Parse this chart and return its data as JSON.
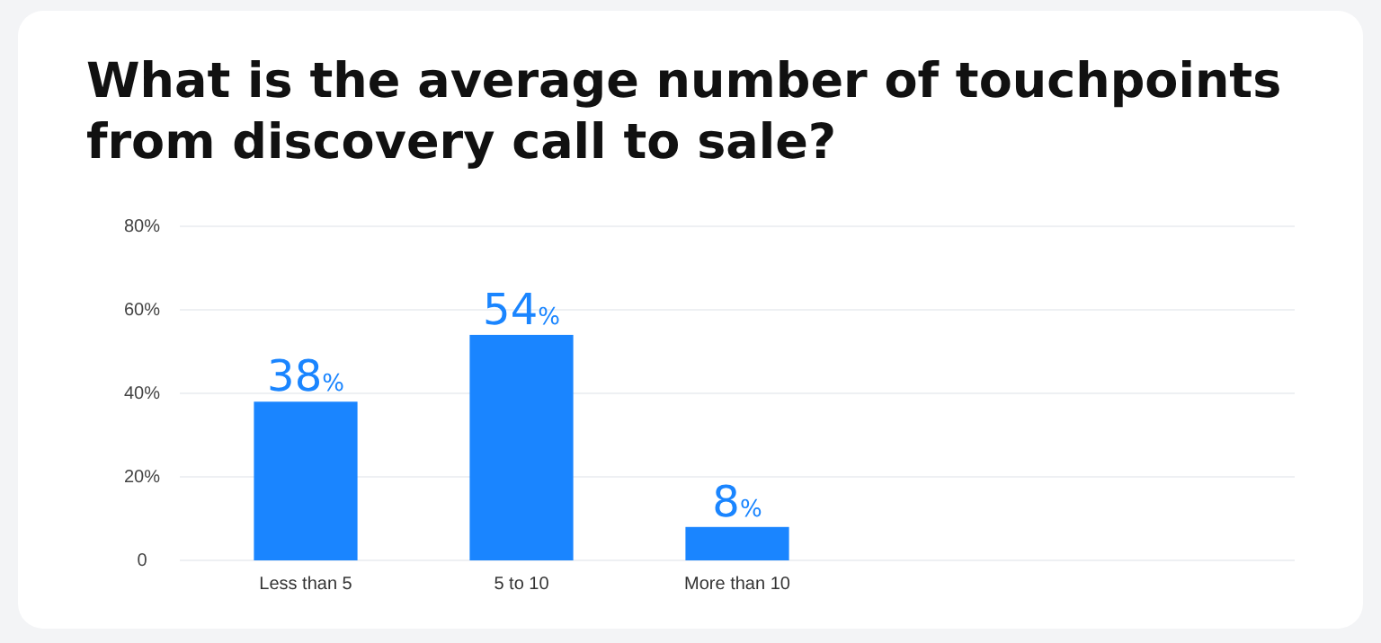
{
  "chart_data": {
    "type": "bar",
    "title": "What is the average number of touchpoints from discovery call to sale?",
    "categories": [
      "Less than 5",
      "5 to 10",
      "More than 10"
    ],
    "values": [
      38,
      54,
      8
    ],
    "color": "#1a85ff",
    "value_labels": [
      "38%",
      "54%",
      "8%"
    ],
    "ylim": [
      0,
      80
    ],
    "yticks": [
      {
        "value": 0,
        "label": "0"
      },
      {
        "value": 20,
        "label": "20%"
      },
      {
        "value": 40,
        "label": "40%"
      },
      {
        "value": 60,
        "label": "60%"
      },
      {
        "value": 80,
        "label": "80%"
      }
    ],
    "grid": "y"
  }
}
